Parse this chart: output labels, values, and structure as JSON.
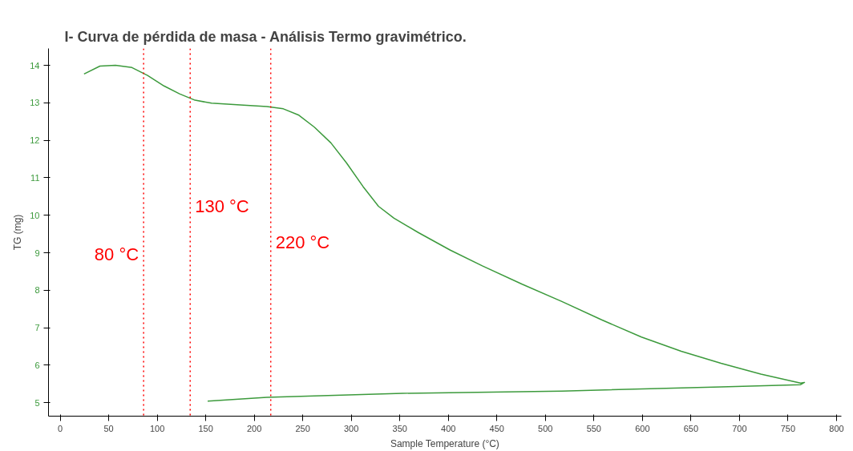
{
  "chart_data": {
    "type": "line",
    "title": "I-  Curva de pérdida de masa - Análisis  Termo gravimétrico.",
    "xlabel": "Sample Temperature (°C)",
    "ylabel": "TG (mg)",
    "series": [
      {
        "color": "#3c9a3c",
        "x": [
          24.6,
          41,
          57,
          74,
          90,
          107,
          123,
          139,
          156,
          189,
          213,
          230,
          246,
          262,
          279,
          295,
          312,
          328,
          344,
          369,
          402,
          435,
          476,
          517,
          558,
          599,
          640,
          681,
          722,
          763,
          767,
          763,
          681,
          517,
          353,
          213,
          152
        ],
        "values": [
          13.77,
          13.98,
          14.0,
          13.94,
          13.73,
          13.45,
          13.24,
          13.07,
          12.99,
          12.94,
          12.9,
          12.84,
          12.67,
          12.35,
          11.93,
          11.4,
          10.77,
          10.24,
          9.92,
          9.54,
          9.07,
          8.65,
          8.16,
          7.7,
          7.21,
          6.75,
          6.37,
          6.05,
          5.76,
          5.52,
          5.54,
          5.48,
          5.42,
          5.31,
          5.25,
          5.14,
          5.04
        ]
      }
    ],
    "xlim": [
      -12,
      805
    ],
    "ylim": [
      4.64,
      14.45
    ],
    "xticks": [
      0,
      50,
      100,
      150,
      200,
      250,
      300,
      350,
      400,
      450,
      500,
      550,
      600,
      650,
      700,
      750,
      800
    ],
    "yticks": [
      5,
      6,
      7,
      8,
      9,
      10,
      11,
      12,
      13,
      14
    ],
    "ref_lines": [
      {
        "axis": "x",
        "value": 86,
        "label": "80 °C",
        "color": "#ff0000",
        "line_style": "dotted"
      },
      {
        "axis": "x",
        "value": 134,
        "label": "130 °C",
        "color": "#ff0000",
        "line_style": "dotted"
      },
      {
        "axis": "x",
        "value": 217,
        "label": "220 °C",
        "color": "#ff0000",
        "line_style": "dotted"
      }
    ],
    "grid": false,
    "marker": "none",
    "line_style": "solid"
  }
}
